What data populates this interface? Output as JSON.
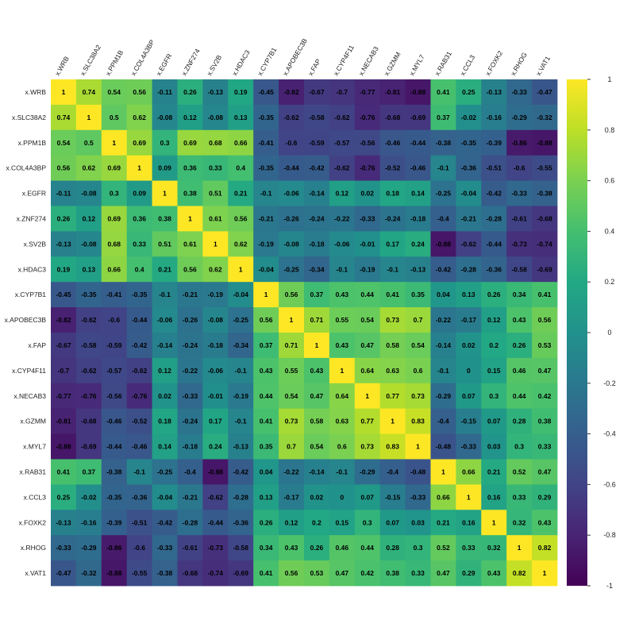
{
  "chart_data": {
    "type": "heatmap",
    "title": "",
    "xlabel": "",
    "ylabel": "",
    "colormap": "viridis",
    "colorscale_range": [
      -1,
      1
    ],
    "colorbar_ticks": [
      "1",
      "0.8",
      "0.6",
      "0.4",
      "0.2",
      "0",
      "-0.2",
      "-0.4",
      "-0.6",
      "-0.8",
      "-1"
    ],
    "grid": false,
    "legend_position": "right",
    "row_labels": [
      "x.WRB",
      "x.SLC38A2",
      "x.PPM1B",
      "x.COL4A3BP",
      "x.EGFR",
      "x.ZNF274",
      "x.SV2B",
      "x.HDAC3",
      "x.CYP7B1",
      "x.APOBEC3B",
      "x.FAP",
      "x.CYP4F11",
      "x.NECAB3",
      "x.GZMM",
      "x.MYL7",
      "x.RAB31",
      "x.CCL3",
      "x.FOXK2",
      "x.RHOG",
      "x.VAT1"
    ],
    "col_labels": [
      "x.WRB",
      "x.SLC38A2",
      "x.PPM1B",
      "x.COL4A3BP",
      "x.EGFR",
      "x.ZNF274",
      "x.SV2B",
      "x.HDAC3",
      "x.CYP7B1",
      "x.APOBEC3B",
      "x.FAP",
      "x.CYP4F11",
      "x.NECAB3",
      "x.GZMM",
      "x.MYL7",
      "x.RAB31",
      "x.CCL3",
      "x.FOXK2",
      "x.RHOG",
      "x.VAT1"
    ],
    "values": [
      [
        1,
        0.74,
        0.54,
        0.56,
        -0.11,
        0.26,
        -0.13,
        0.19,
        -0.45,
        -0.82,
        -0.67,
        -0.7,
        -0.77,
        -0.81,
        -0.88,
        0.41,
        0.25,
        -0.13,
        -0.33,
        -0.47
      ],
      [
        0.74,
        1,
        0.5,
        0.62,
        -0.08,
        0.12,
        -0.08,
        0.13,
        -0.35,
        -0.62,
        -0.58,
        -0.62,
        -0.76,
        -0.68,
        -0.69,
        0.37,
        -0.02,
        -0.16,
        -0.29,
        -0.32
      ],
      [
        0.54,
        0.5,
        1,
        0.69,
        0.3,
        0.69,
        0.68,
        0.66,
        -0.41,
        -0.6,
        -0.59,
        -0.57,
        -0.56,
        -0.46,
        -0.44,
        -0.38,
        -0.35,
        -0.39,
        -0.86,
        -0.88
      ],
      [
        0.56,
        0.62,
        0.69,
        1,
        0.09,
        0.36,
        0.33,
        0.4,
        -0.35,
        -0.44,
        -0.42,
        -0.62,
        -0.76,
        -0.52,
        -0.46,
        -0.1,
        -0.36,
        -0.51,
        -0.6,
        -0.55
      ],
      [
        -0.11,
        -0.08,
        0.3,
        0.09,
        1,
        0.38,
        0.51,
        0.21,
        -0.1,
        -0.06,
        -0.14,
        0.12,
        0.02,
        0.18,
        0.14,
        -0.25,
        -0.04,
        -0.42,
        -0.33,
        -0.38
      ],
      [
        0.26,
        0.12,
        0.69,
        0.36,
        0.38,
        1,
        0.61,
        0.56,
        -0.21,
        -0.26,
        -0.24,
        -0.22,
        -0.33,
        -0.24,
        -0.18,
        -0.4,
        -0.21,
        -0.28,
        -0.61,
        -0.68
      ],
      [
        -0.13,
        -0.08,
        0.68,
        0.33,
        0.51,
        0.61,
        1,
        0.62,
        -0.19,
        -0.08,
        -0.18,
        -0.06,
        -0.01,
        0.17,
        0.24,
        -0.88,
        -0.62,
        -0.44,
        -0.73,
        -0.74
      ],
      [
        0.19,
        0.13,
        0.66,
        0.4,
        0.21,
        0.56,
        0.62,
        1,
        -0.04,
        -0.25,
        -0.34,
        -0.1,
        -0.19,
        -0.1,
        -0.13,
        -0.42,
        -0.28,
        -0.36,
        -0.58,
        -0.69
      ],
      [
        -0.45,
        -0.35,
        -0.41,
        -0.35,
        -0.1,
        -0.21,
        -0.19,
        -0.04,
        1,
        0.56,
        0.37,
        0.43,
        0.44,
        0.41,
        0.35,
        0.04,
        0.13,
        0.26,
        0.34,
        0.41
      ],
      [
        -0.82,
        -0.62,
        -0.6,
        -0.44,
        -0.06,
        -0.26,
        -0.08,
        -0.25,
        0.56,
        1,
        0.71,
        0.55,
        0.54,
        0.73,
        0.7,
        -0.22,
        -0.17,
        0.12,
        0.43,
        0.56
      ],
      [
        -0.67,
        -0.58,
        -0.59,
        -0.42,
        -0.14,
        -0.24,
        -0.18,
        -0.34,
        0.37,
        0.71,
        1,
        0.43,
        0.47,
        0.58,
        0.54,
        -0.14,
        0.02,
        0.2,
        0.26,
        0.53
      ],
      [
        -0.7,
        -0.62,
        -0.57,
        -0.62,
        0.12,
        -0.22,
        -0.06,
        -0.1,
        0.43,
        0.55,
        0.43,
        1,
        0.64,
        0.63,
        0.6,
        -0.1,
        0,
        0.15,
        0.46,
        0.47
      ],
      [
        -0.77,
        -0.76,
        -0.56,
        -0.76,
        0.02,
        -0.33,
        -0.01,
        -0.19,
        0.44,
        0.54,
        0.47,
        0.64,
        1,
        0.77,
        0.73,
        -0.29,
        0.07,
        0.3,
        0.44,
        0.42
      ],
      [
        -0.81,
        -0.68,
        -0.46,
        -0.52,
        0.18,
        -0.24,
        0.17,
        -0.1,
        0.41,
        0.73,
        0.58,
        0.63,
        0.77,
        1,
        0.83,
        -0.4,
        -0.15,
        0.07,
        0.28,
        0.38
      ],
      [
        -0.88,
        -0.69,
        -0.44,
        -0.46,
        0.14,
        -0.18,
        0.24,
        -0.13,
        0.35,
        0.7,
        0.54,
        0.6,
        0.73,
        0.83,
        1,
        -0.48,
        -0.33,
        0.03,
        0.3,
        0.33
      ],
      [
        0.41,
        0.37,
        -0.38,
        -0.1,
        -0.25,
        -0.4,
        -0.88,
        -0.42,
        0.04,
        -0.22,
        -0.14,
        -0.1,
        -0.29,
        -0.4,
        -0.48,
        1,
        0.66,
        0.21,
        0.52,
        0.47
      ],
      [
        0.25,
        -0.02,
        -0.35,
        -0.36,
        -0.04,
        -0.21,
        -0.62,
        -0.28,
        0.13,
        -0.17,
        0.02,
        0,
        0.07,
        -0.15,
        -0.33,
        0.66,
        1,
        0.16,
        0.33,
        0.29
      ],
      [
        -0.13,
        -0.16,
        -0.39,
        -0.51,
        -0.42,
        -0.28,
        -0.44,
        -0.36,
        0.26,
        0.12,
        0.2,
        0.15,
        0.3,
        0.07,
        0.03,
        0.21,
        0.16,
        1,
        0.32,
        0.43
      ],
      [
        -0.33,
        -0.29,
        -0.86,
        -0.6,
        -0.33,
        -0.61,
        -0.73,
        -0.58,
        0.34,
        0.43,
        0.26,
        0.46,
        0.44,
        0.28,
        0.3,
        0.52,
        0.33,
        0.32,
        1,
        0.82
      ],
      [
        -0.47,
        -0.32,
        -0.88,
        -0.55,
        -0.38,
        -0.68,
        -0.74,
        -0.69,
        0.41,
        0.56,
        0.53,
        0.47,
        0.42,
        0.38,
        0.33,
        0.47,
        0.29,
        0.43,
        0.82,
        1
      ]
    ]
  }
}
